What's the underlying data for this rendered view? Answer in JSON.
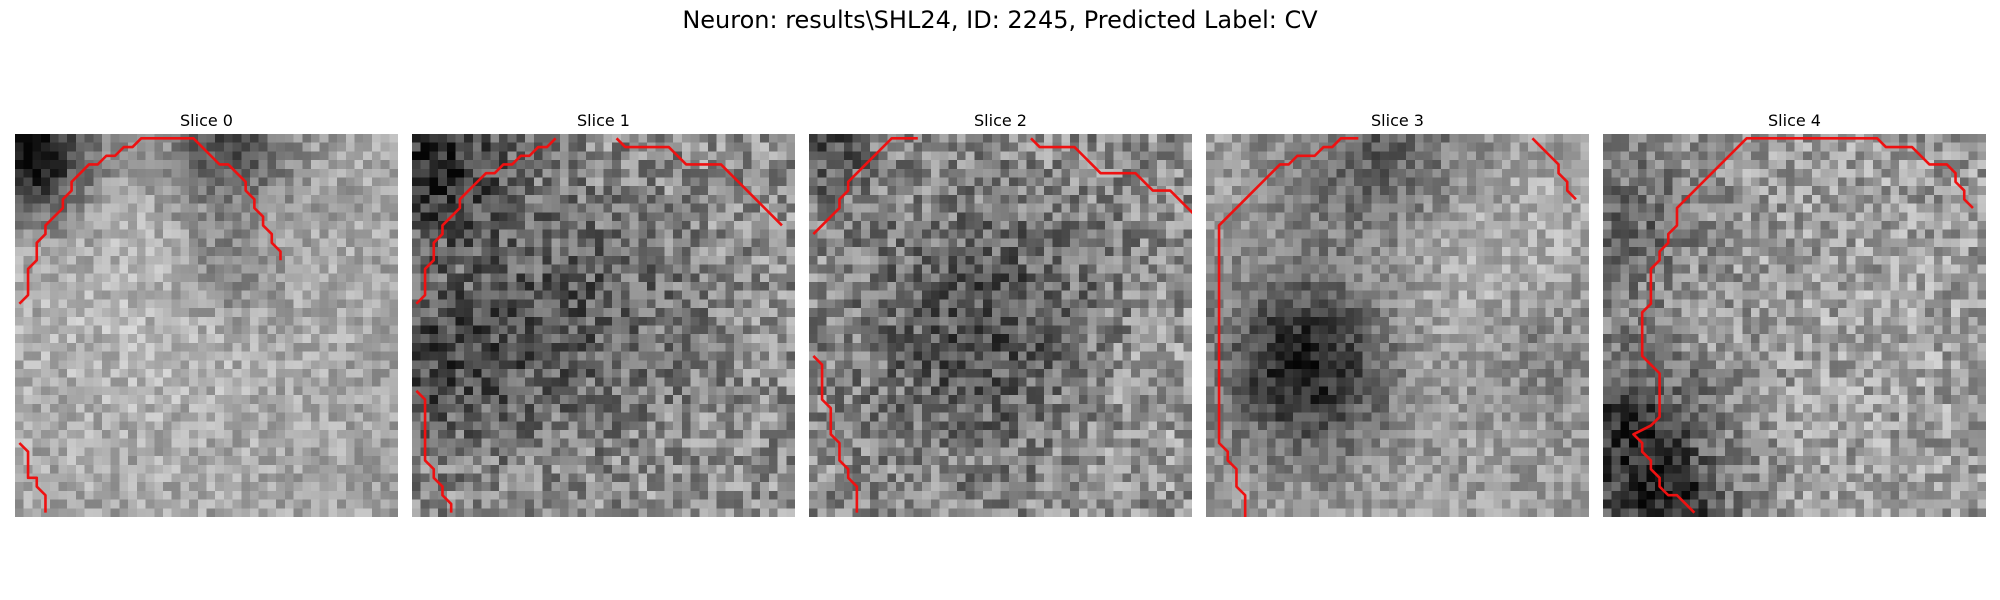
{
  "figure": {
    "title": "Neuron: results\\SHL24, ID: 2245, Predicted Label: CV"
  },
  "colors": {
    "contour": "#ee1111",
    "background": "#ffffff"
  },
  "panels": [
    {
      "title": "Slice 0",
      "contours": [
        [
          [
            0,
            19
          ],
          [
            1,
            18
          ],
          [
            1,
            15
          ],
          [
            2,
            14
          ],
          [
            2,
            12
          ],
          [
            3,
            11
          ],
          [
            3,
            10
          ],
          [
            4,
            9
          ],
          [
            5,
            8
          ],
          [
            5,
            7
          ],
          [
            6,
            6
          ],
          [
            6,
            5
          ],
          [
            7,
            4
          ],
          [
            8,
            3
          ],
          [
            9,
            3
          ],
          [
            10,
            2
          ],
          [
            11,
            2
          ],
          [
            12,
            1
          ],
          [
            13,
            1
          ],
          [
            14,
            0
          ],
          [
            20,
            0
          ],
          [
            21,
            1
          ],
          [
            22,
            2
          ],
          [
            23,
            3
          ],
          [
            24,
            3
          ],
          [
            25,
            4
          ],
          [
            26,
            5
          ],
          [
            26,
            6
          ],
          [
            27,
            7
          ],
          [
            27,
            8
          ],
          [
            28,
            9
          ],
          [
            28,
            10
          ],
          [
            29,
            11
          ],
          [
            29,
            12
          ],
          [
            30,
            13
          ],
          [
            30,
            14
          ]
        ],
        [
          [
            0,
            35
          ],
          [
            1,
            36
          ],
          [
            1,
            39
          ],
          [
            2,
            39
          ],
          [
            2,
            40
          ],
          [
            3,
            41
          ],
          [
            3,
            43
          ]
        ]
      ],
      "blobs": [
        {
          "cx": 1,
          "cy": 2,
          "r": 5,
          "s": -0.6
        },
        {
          "cx": 24,
          "cy": 1,
          "r": 5,
          "s": -0.35
        },
        {
          "cx": 24,
          "cy": 15,
          "r": 4,
          "s": -0.18
        },
        {
          "cx": 15,
          "cy": 20,
          "r": 12,
          "s": 0.08
        }
      ],
      "base": 0.64,
      "noise": 0.14,
      "seed": 11
    },
    {
      "title": "Slice 1",
      "contours": [
        [
          [
            0,
            19
          ],
          [
            1,
            18
          ],
          [
            1,
            15
          ],
          [
            2,
            14
          ],
          [
            2,
            12
          ],
          [
            3,
            11
          ],
          [
            3,
            10
          ],
          [
            4,
            9
          ],
          [
            5,
            8
          ],
          [
            5,
            7
          ],
          [
            6,
            6
          ],
          [
            7,
            5
          ],
          [
            8,
            4
          ],
          [
            9,
            4
          ],
          [
            10,
            3
          ],
          [
            11,
            3
          ],
          [
            12,
            2
          ],
          [
            13,
            2
          ],
          [
            14,
            1
          ],
          [
            15,
            1
          ],
          [
            16,
            0
          ]
        ],
        [
          [
            23,
            0
          ],
          [
            24,
            1
          ],
          [
            29,
            1
          ],
          [
            30,
            2
          ],
          [
            31,
            3
          ],
          [
            35,
            3
          ],
          [
            36,
            4
          ],
          [
            37,
            5
          ],
          [
            38,
            6
          ],
          [
            39,
            7
          ],
          [
            40,
            8
          ],
          [
            41,
            9
          ],
          [
            42,
            10
          ]
        ],
        [
          [
            0,
            29
          ],
          [
            1,
            30
          ],
          [
            1,
            37
          ],
          [
            2,
            38
          ],
          [
            2,
            39
          ],
          [
            3,
            40
          ],
          [
            3,
            41
          ],
          [
            4,
            42
          ],
          [
            4,
            43
          ]
        ]
      ],
      "blobs": [
        {
          "cx": 2,
          "cy": 3,
          "r": 6,
          "s": -0.4
        },
        {
          "cx": 18,
          "cy": 20,
          "r": 9,
          "s": -0.2
        },
        {
          "cx": 2,
          "cy": 26,
          "r": 7,
          "s": -0.25
        }
      ],
      "base": 0.56,
      "noise": 0.22,
      "seed": 23
    },
    {
      "title": "Slice 2",
      "contours": [
        [
          [
            0,
            11
          ],
          [
            1,
            10
          ],
          [
            2,
            9
          ],
          [
            3,
            8
          ],
          [
            3,
            7
          ],
          [
            4,
            6
          ],
          [
            4,
            5
          ],
          [
            5,
            4
          ],
          [
            6,
            3
          ],
          [
            7,
            2
          ],
          [
            8,
            1
          ],
          [
            9,
            0
          ],
          [
            12,
            0
          ]
        ],
        [
          [
            25,
            0
          ],
          [
            26,
            1
          ],
          [
            30,
            1
          ],
          [
            31,
            2
          ],
          [
            32,
            3
          ],
          [
            33,
            4
          ],
          [
            37,
            4
          ],
          [
            38,
            5
          ],
          [
            39,
            6
          ],
          [
            41,
            6
          ],
          [
            42,
            7
          ],
          [
            43,
            8
          ],
          [
            44,
            9
          ],
          [
            45,
            10
          ]
        ],
        [
          [
            0,
            25
          ],
          [
            1,
            26
          ],
          [
            1,
            30
          ],
          [
            2,
            31
          ],
          [
            2,
            34
          ],
          [
            3,
            35
          ],
          [
            3,
            37
          ],
          [
            4,
            38
          ],
          [
            4,
            39
          ],
          [
            5,
            40
          ],
          [
            5,
            43
          ]
        ]
      ],
      "blobs": [
        {
          "cx": 20,
          "cy": 22,
          "r": 10,
          "s": -0.25
        },
        {
          "cx": 1,
          "cy": 1,
          "r": 4,
          "s": -0.25
        },
        {
          "cx": 38,
          "cy": 30,
          "r": 8,
          "s": 0.08
        }
      ],
      "base": 0.56,
      "noise": 0.22,
      "seed": 37
    },
    {
      "title": "Slice 3",
      "contours": [
        [
          [
            4,
            44
          ],
          [
            4,
            41
          ],
          [
            3,
            40
          ],
          [
            3,
            38
          ],
          [
            2,
            37
          ],
          [
            2,
            36
          ],
          [
            1,
            35
          ],
          [
            1,
            10
          ],
          [
            2,
            9
          ],
          [
            3,
            8
          ],
          [
            4,
            7
          ],
          [
            5,
            6
          ],
          [
            6,
            5
          ],
          [
            7,
            4
          ],
          [
            8,
            3
          ],
          [
            9,
            3
          ],
          [
            10,
            2
          ],
          [
            12,
            2
          ],
          [
            13,
            1
          ],
          [
            14,
            1
          ],
          [
            15,
            0
          ],
          [
            17,
            0
          ]
        ],
        [
          [
            37,
            0
          ],
          [
            38,
            1
          ],
          [
            39,
            2
          ],
          [
            40,
            3
          ],
          [
            40,
            4
          ],
          [
            41,
            5
          ],
          [
            41,
            6
          ],
          [
            42,
            7
          ]
        ]
      ],
      "blobs": [
        {
          "cx": 11,
          "cy": 26,
          "r": 7,
          "s": -0.5
        },
        {
          "cx": 20,
          "cy": 2,
          "r": 8,
          "s": -0.28
        },
        {
          "cx": 38,
          "cy": 24,
          "r": 6,
          "s": -0.14
        },
        {
          "cx": 30,
          "cy": 14,
          "r": 10,
          "s": 0.12
        }
      ],
      "base": 0.62,
      "noise": 0.15,
      "seed": 41
    },
    {
      "title": "Slice 4",
      "contours": [
        [
          [
            10,
            43
          ],
          [
            9,
            42
          ],
          [
            8,
            41
          ],
          [
            7,
            41
          ],
          [
            6,
            40
          ],
          [
            6,
            39
          ],
          [
            5,
            38
          ],
          [
            5,
            37
          ],
          [
            4,
            36
          ],
          [
            4,
            35
          ],
          [
            3,
            34
          ],
          [
            5,
            33
          ],
          [
            6,
            32
          ],
          [
            6,
            27
          ],
          [
            5,
            26
          ],
          [
            4,
            25
          ],
          [
            4,
            20
          ],
          [
            5,
            19
          ],
          [
            5,
            17
          ],
          [
            5,
            15
          ],
          [
            6,
            14
          ],
          [
            6,
            13
          ],
          [
            7,
            12
          ],
          [
            7,
            11
          ],
          [
            8,
            10
          ],
          [
            8,
            9
          ],
          [
            8,
            8
          ],
          [
            9,
            7
          ],
          [
            10,
            6
          ],
          [
            11,
            5
          ],
          [
            12,
            4
          ],
          [
            13,
            3
          ],
          [
            14,
            2
          ],
          [
            15,
            1
          ],
          [
            16,
            0
          ],
          [
            31,
            0
          ],
          [
            32,
            1
          ],
          [
            33,
            1
          ],
          [
            35,
            1
          ],
          [
            36,
            2
          ],
          [
            37,
            3
          ],
          [
            39,
            3
          ],
          [
            40,
            4
          ],
          [
            40,
            5
          ],
          [
            41,
            6
          ],
          [
            41,
            7
          ],
          [
            42,
            8
          ]
        ]
      ],
      "blobs": [
        {
          "cx": 2,
          "cy": 35,
          "r": 7,
          "s": -0.42
        },
        {
          "cx": 8,
          "cy": 43,
          "r": 4,
          "s": -0.3
        },
        {
          "cx": 2,
          "cy": 10,
          "r": 6,
          "s": -0.2
        },
        {
          "cx": 30,
          "cy": 24,
          "r": 12,
          "s": 0.04
        }
      ],
      "base": 0.6,
      "noise": 0.2,
      "seed": 53
    }
  ]
}
